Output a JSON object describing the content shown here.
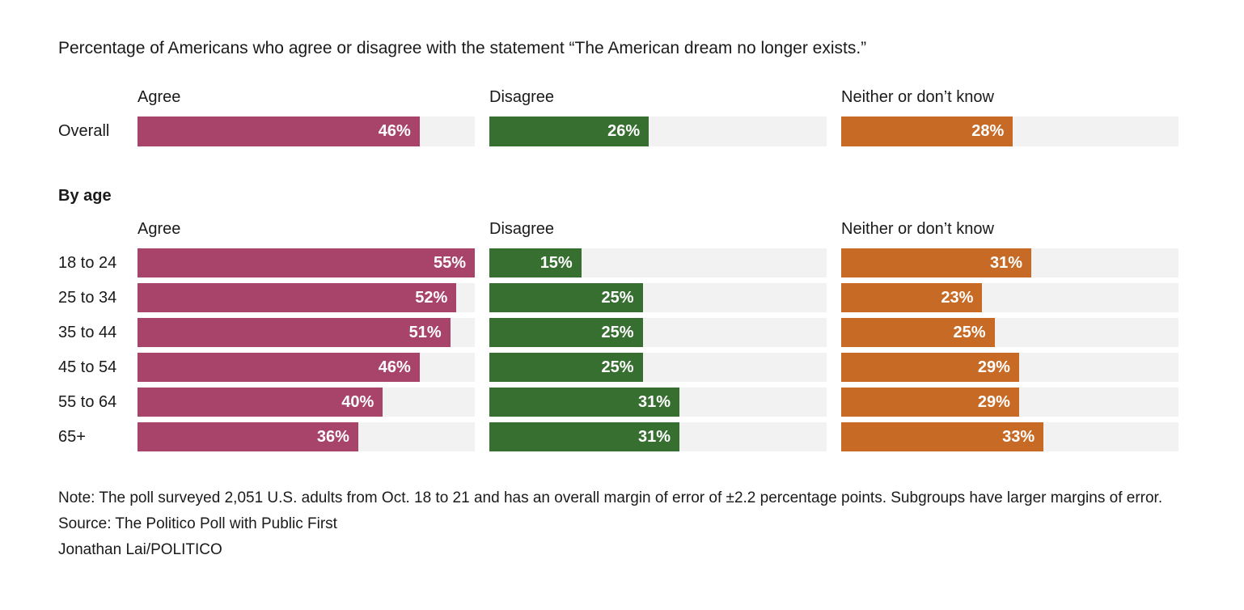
{
  "chart_data": {
    "type": "bar",
    "orientation": "horizontal",
    "title": "Percentage of Americans who agree or disagree with the statement “The American dream no longer exists.”",
    "column_headers": [
      "Agree",
      "Disagree",
      "Neither or don’t know"
    ],
    "by_age_heading": "By age",
    "scale_max": 55,
    "unit": "%",
    "grid": false,
    "colors": {
      "series": [
        "#a84369",
        "#376f31",
        "#c66a25"
      ],
      "track": "#f2f2f2",
      "value_label": "#ffffff",
      "text": "#1a1a1a"
    },
    "rows": [
      {
        "label": "Overall",
        "section": "overall",
        "values": [
          46,
          26,
          28
        ]
      },
      {
        "label": "18 to 24",
        "section": "by_age",
        "values": [
          55,
          15,
          31
        ]
      },
      {
        "label": "25 to 34",
        "section": "by_age",
        "values": [
          52,
          25,
          23
        ]
      },
      {
        "label": "35 to 44",
        "section": "by_age",
        "values": [
          51,
          25,
          25
        ]
      },
      {
        "label": "45 to 54",
        "section": "by_age",
        "values": [
          46,
          25,
          29
        ]
      },
      {
        "label": "55 to 64",
        "section": "by_age",
        "values": [
          40,
          31,
          29
        ]
      },
      {
        "label": "65+",
        "section": "by_age",
        "values": [
          36,
          31,
          33
        ]
      }
    ]
  },
  "footer": {
    "note": "Note: The poll surveyed 2,051 U.S. adults from Oct. 18 to 21 and has an overall margin of error of ±2.2 percentage points. Subgroups have larger margins of error.",
    "source": "Source: The Politico Poll with Public First",
    "byline": "Jonathan Lai/POLITICO"
  }
}
